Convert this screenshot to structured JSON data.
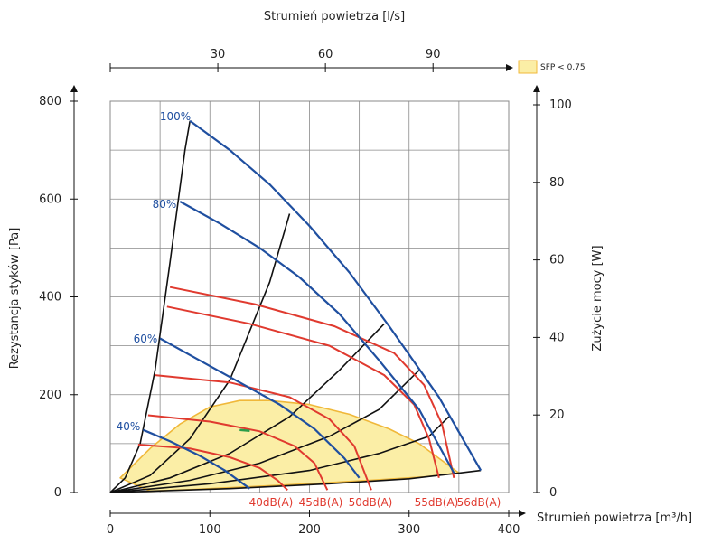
{
  "colors": {
    "blue": "#1f4fa0",
    "red": "#e03a2f",
    "black": "#111111",
    "sfp_fill": "#fbeea6",
    "sfp_stroke": "#f0b83a",
    "grid": "#8a8a8a",
    "green": "#2a9d4a"
  },
  "chart_data": {
    "type": "line",
    "title": "",
    "top_axis": {
      "label": "Strumień powietrza [l/s]",
      "ticks": [
        "30",
        "60",
        "90"
      ],
      "tick_values": [
        30,
        60,
        90
      ]
    },
    "bottom_axis": {
      "label": "Strumień powietrza [m³/h]",
      "ticks": [
        "0",
        "100",
        "200",
        "300",
        "400"
      ],
      "tick_values": [
        0,
        100,
        200,
        300,
        400
      ],
      "range": [
        0,
        400
      ]
    },
    "left_axis": {
      "label": "Rezystancja styków  [Pa]",
      "ticks": [
        "0",
        "200",
        "400",
        "600",
        "800"
      ],
      "tick_values": [
        0,
        200,
        400,
        600,
        800
      ],
      "range": [
        0,
        800
      ]
    },
    "right_axis": {
      "label": "Zużycie mocy [W]",
      "ticks": [
        "0",
        "20",
        "40",
        "60",
        "80",
        "100"
      ],
      "tick_values": [
        0,
        20,
        40,
        60,
        80,
        100
      ],
      "range": [
        0,
        100
      ]
    },
    "legend": {
      "label": "SFP < 0,75",
      "position": "top-right"
    },
    "pressure_curves": [
      {
        "label": "100%",
        "points": [
          [
            80,
            760
          ],
          [
            120,
            700
          ],
          [
            160,
            630
          ],
          [
            200,
            545
          ],
          [
            240,
            450
          ],
          [
            280,
            340
          ],
          [
            330,
            195
          ],
          [
            372,
            45
          ]
        ]
      },
      {
        "label": "80%",
        "points": [
          [
            70,
            595
          ],
          [
            110,
            550
          ],
          [
            150,
            500
          ],
          [
            190,
            440
          ],
          [
            230,
            365
          ],
          [
            270,
            270
          ],
          [
            310,
            170
          ],
          [
            345,
            40
          ]
        ]
      },
      {
        "label": "60%",
        "points": [
          [
            50,
            315
          ],
          [
            90,
            270
          ],
          [
            130,
            225
          ],
          [
            170,
            180
          ],
          [
            205,
            130
          ],
          [
            235,
            70
          ],
          [
            250,
            30
          ]
        ]
      },
      {
        "label": "40%",
        "points": [
          [
            33,
            128
          ],
          [
            60,
            105
          ],
          [
            90,
            75
          ],
          [
            115,
            45
          ],
          [
            140,
            8
          ]
        ]
      }
    ],
    "power_curves": [
      {
        "points": [
          [
            0,
            0
          ],
          [
            15,
            30
          ],
          [
            30,
            100
          ],
          [
            45,
            250
          ],
          [
            60,
            470
          ],
          [
            75,
            700
          ],
          [
            80,
            760
          ]
        ]
      },
      {
        "points": [
          [
            0,
            0
          ],
          [
            40,
            35
          ],
          [
            80,
            110
          ],
          [
            120,
            230
          ],
          [
            160,
            430
          ],
          [
            180,
            570
          ]
        ]
      },
      {
        "points": [
          [
            0,
            0
          ],
          [
            60,
            30
          ],
          [
            120,
            80
          ],
          [
            180,
            155
          ],
          [
            230,
            250
          ],
          [
            275,
            345
          ]
        ]
      },
      {
        "points": [
          [
            0,
            0
          ],
          [
            80,
            25
          ],
          [
            150,
            60
          ],
          [
            220,
            115
          ],
          [
            270,
            170
          ],
          [
            310,
            250
          ]
        ]
      },
      {
        "points": [
          [
            0,
            0
          ],
          [
            100,
            18
          ],
          [
            200,
            45
          ],
          [
            270,
            80
          ],
          [
            320,
            115
          ],
          [
            340,
            155
          ]
        ]
      },
      {
        "points": [
          [
            0,
            0
          ],
          [
            120,
            8
          ],
          [
            220,
            18
          ],
          [
            300,
            28
          ],
          [
            372,
            45
          ]
        ]
      }
    ],
    "noise_curves": [
      {
        "label": "40dB(A)",
        "points": [
          [
            28,
            98
          ],
          [
            80,
            90
          ],
          [
            120,
            72
          ],
          [
            150,
            50
          ],
          [
            168,
            25
          ],
          [
            178,
            5
          ]
        ]
      },
      {
        "label": "45dB(A)",
        "points": [
          [
            38,
            158
          ],
          [
            100,
            145
          ],
          [
            150,
            125
          ],
          [
            185,
            95
          ],
          [
            205,
            60
          ],
          [
            218,
            5
          ]
        ]
      },
      {
        "label": "50dB(A)",
        "points": [
          [
            45,
            240
          ],
          [
            120,
            225
          ],
          [
            180,
            195
          ],
          [
            220,
            150
          ],
          [
            245,
            95
          ],
          [
            262,
            5
          ]
        ]
      },
      {
        "label": "55dB(A)",
        "points": [
          [
            57,
            380
          ],
          [
            140,
            345
          ],
          [
            220,
            300
          ],
          [
            275,
            240
          ],
          [
            305,
            180
          ],
          [
            320,
            110
          ],
          [
            330,
            30
          ]
        ]
      },
      {
        "label": "56dB(A)",
        "points": [
          [
            60,
            420
          ],
          [
            145,
            385
          ],
          [
            225,
            340
          ],
          [
            285,
            285
          ],
          [
            315,
            220
          ],
          [
            333,
            140
          ],
          [
            345,
            30
          ]
        ]
      }
    ],
    "sfp_region": {
      "points": [
        [
          10,
          30
        ],
        [
          40,
          90
        ],
        [
          70,
          140
        ],
        [
          100,
          175
        ],
        [
          130,
          188
        ],
        [
          160,
          188
        ],
        [
          200,
          180
        ],
        [
          240,
          160
        ],
        [
          280,
          130
        ],
        [
          310,
          100
        ],
        [
          330,
          70
        ],
        [
          350,
          40
        ],
        [
          315,
          32
        ],
        [
          260,
          25
        ],
        [
          200,
          18
        ],
        [
          140,
          12
        ],
        [
          80,
          6
        ],
        [
          40,
          3
        ],
        [
          10,
          30
        ]
      ]
    },
    "green_mark": {
      "points": [
        [
          130,
          128
        ],
        [
          140,
          126
        ]
      ]
    },
    "grid": true
  }
}
